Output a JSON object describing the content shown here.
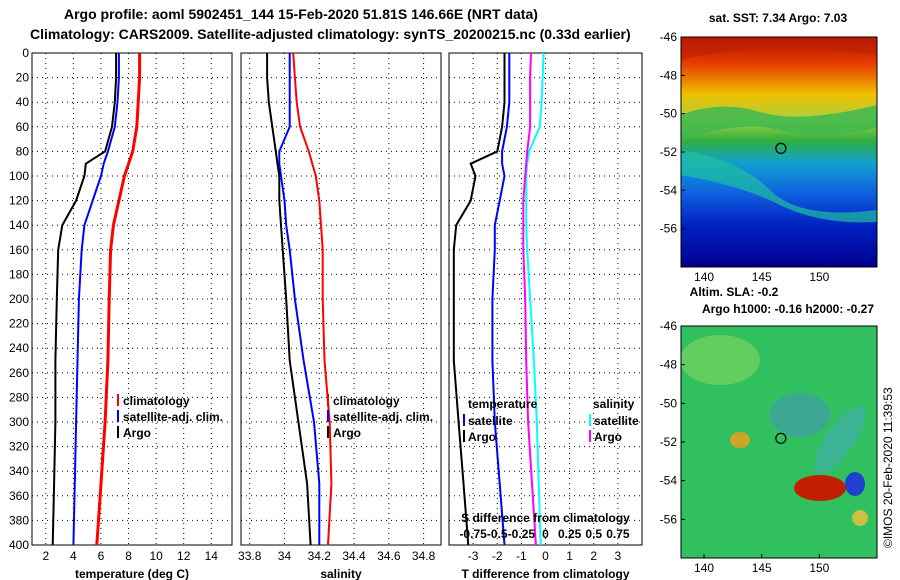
{
  "header": {
    "title_line1": "Argo profile: aoml 5902451_144 15-Feb-2020 51.81S 146.66E (NRT data)",
    "title_line2": "Climatology: CARS2009. Satellite-adjusted climatology: synTS_20200215.nc (0.33d earlier)"
  },
  "colors": {
    "climatology": "#ff0000",
    "satellite": "#0000ff",
    "argo": "#000000",
    "sat_salinity": "#00ffff",
    "argo_salinity": "#ff00ff"
  },
  "chart_data": [
    {
      "type": "line",
      "title": "",
      "xlabel": "temperature (deg C)",
      "ylabel": "",
      "xlim": [
        1,
        15.5
      ],
      "ylim": [
        400,
        0
      ],
      "xticks": [
        "2",
        "4",
        "6",
        "8",
        "10",
        "12",
        "14"
      ],
      "yticks": [
        "0",
        "20",
        "40",
        "60",
        "80",
        "100",
        "120",
        "140",
        "160",
        "180",
        "200",
        "220",
        "240",
        "260",
        "280",
        "300",
        "320",
        "340",
        "360",
        "380",
        "400"
      ],
      "grid": true,
      "legend": [
        "climatology",
        "satellite-adj. clim.",
        "Argo"
      ],
      "depth": [
        0,
        20,
        40,
        60,
        80,
        90,
        100,
        120,
        140,
        160,
        200,
        250,
        300,
        350,
        400
      ],
      "series": [
        {
          "name": "climatology",
          "values": [
            8.8,
            8.8,
            8.7,
            8.6,
            8.3,
            8.0,
            7.7,
            7.3,
            6.9,
            6.7,
            6.6,
            6.5,
            6.3,
            6.0,
            5.7
          ]
        },
        {
          "name": "satellite-adj. clim.",
          "values": [
            7.3,
            7.3,
            7.2,
            7.0,
            6.5,
            6.2,
            6.0,
            5.4,
            4.8,
            4.6,
            4.4,
            4.3,
            4.2,
            4.1,
            4.0
          ]
        },
        {
          "name": "Argo",
          "values": [
            7.1,
            7.1,
            7.0,
            6.8,
            6.3,
            4.9,
            4.8,
            4.2,
            3.2,
            2.9,
            2.8,
            2.7,
            2.7,
            2.6,
            2.5
          ]
        }
      ]
    },
    {
      "type": "line",
      "title": "",
      "xlabel": "salinity",
      "ylabel": "",
      "xlim": [
        33.75,
        34.9
      ],
      "ylim": [
        400,
        0
      ],
      "xticks": [
        "33.8",
        "34",
        "34.2",
        "34.4",
        "34.6",
        "34.8"
      ],
      "yticks": [],
      "grid": true,
      "legend": [
        "climatology",
        "satellite-adj. clim.",
        "Argo"
      ],
      "depth": [
        0,
        20,
        40,
        60,
        80,
        90,
        100,
        120,
        140,
        160,
        200,
        250,
        300,
        350,
        400
      ],
      "series": [
        {
          "name": "climatology",
          "values": [
            34.05,
            34.06,
            34.07,
            34.09,
            34.14,
            34.16,
            34.18,
            34.2,
            34.21,
            34.22,
            34.22,
            34.23,
            34.26,
            34.27,
            34.25
          ]
        },
        {
          "name": "satellite-adj. clim.",
          "values": [
            34.03,
            34.03,
            34.03,
            34.03,
            33.97,
            33.97,
            33.98,
            34.0,
            34.01,
            34.03,
            34.06,
            34.11,
            34.17,
            34.2,
            34.2
          ]
        },
        {
          "name": "Argo",
          "values": [
            33.9,
            33.9,
            33.91,
            33.93,
            33.95,
            33.96,
            33.97,
            33.97,
            33.98,
            33.99,
            34.01,
            34.03,
            34.08,
            34.13,
            34.15
          ]
        }
      ]
    },
    {
      "type": "line",
      "title": "",
      "xlabel": "T difference from climatology",
      "ylabel": "",
      "xlim": [
        -4,
        4
      ],
      "ylim": [
        400,
        0
      ],
      "xticks": [
        "-3",
        "-2",
        "-1",
        "0",
        "1",
        "2",
        "3"
      ],
      "yticks": [],
      "grid": true,
      "annotation": "S difference from climatology",
      "sxticks": [
        "-0.75",
        "-0.5",
        "-0.25",
        "0",
        "0.25",
        "0.5",
        "0.75"
      ],
      "legend_temperature_title": "temperature",
      "legend_salinity_title": "salinity",
      "legend_temperature": [
        "satellite",
        "Argo"
      ],
      "legend_salinity": [
        "satellite",
        "Argo"
      ],
      "depth": [
        0,
        20,
        40,
        60,
        80,
        90,
        100,
        120,
        140,
        160,
        200,
        250,
        300,
        350,
        400
      ],
      "series": [
        {
          "name": "T satellite",
          "values": [
            -1.5,
            -1.5,
            -1.5,
            -1.6,
            -1.8,
            -1.8,
            -1.7,
            -1.9,
            -2.1,
            -2.1,
            -2.2,
            -2.2,
            -2.1,
            -1.9,
            -1.7
          ]
        },
        {
          "name": "T Argo",
          "values": [
            -1.7,
            -1.7,
            -1.7,
            -1.8,
            -2.0,
            -3.1,
            -2.9,
            -3.1,
            -3.7,
            -3.8,
            -3.8,
            -3.8,
            -3.6,
            -3.4,
            -3.2
          ]
        },
        {
          "name": "S satellite",
          "values": [
            -0.02,
            -0.03,
            -0.04,
            -0.06,
            -0.17,
            -0.19,
            -0.2,
            -0.2,
            -0.2,
            -0.19,
            -0.16,
            -0.12,
            -0.09,
            -0.07,
            -0.05
          ]
        },
        {
          "name": "S Argo",
          "values": [
            -0.15,
            -0.16,
            -0.16,
            -0.16,
            -0.19,
            -0.2,
            -0.21,
            -0.23,
            -0.23,
            -0.23,
            -0.21,
            -0.2,
            -0.18,
            -0.14,
            -0.1
          ]
        }
      ]
    },
    {
      "type": "heatmap",
      "title": "sat. SST: 7.34 Argo: 7.03",
      "xlabel": "",
      "ylabel": "",
      "xlim": [
        138,
        155
      ],
      "ylim": [
        -58,
        -46
      ],
      "xticks": [
        "140",
        "145",
        "150"
      ],
      "yticks": [
        "-46",
        "-48",
        "-50",
        "-52",
        "-54",
        "-56"
      ],
      "marker": {
        "lon": 146.66,
        "lat": -51.81
      }
    },
    {
      "type": "heatmap",
      "title": "Altim. SLA: -0.2",
      "subtitle": "Argo h1000: -0.16 h2000: -0.27",
      "xlabel": "",
      "ylabel": "",
      "xlim": [
        138,
        155
      ],
      "ylim": [
        -58,
        -46
      ],
      "xticks": [
        "140",
        "145",
        "150"
      ],
      "yticks": [
        "-46",
        "-48",
        "-50",
        "-52",
        "-54",
        "-56"
      ],
      "marker": {
        "lon": 146.66,
        "lat": -51.81
      },
      "credit": "©IMOS 20-Feb-2020 11:39:53"
    }
  ]
}
